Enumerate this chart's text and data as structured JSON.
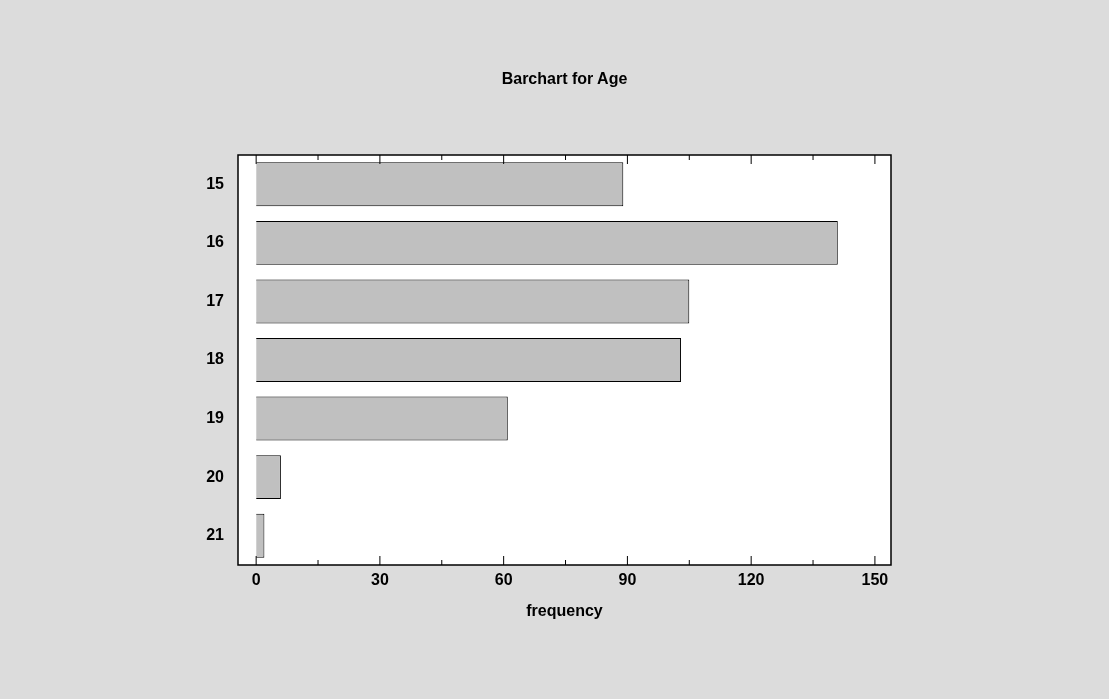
{
  "chart_data": {
    "type": "bar",
    "orientation": "horizontal",
    "title": "Barchart for Age",
    "xlabel": "frequency",
    "categories": [
      "15",
      "16",
      "17",
      "18",
      "19",
      "20",
      "21"
    ],
    "values": [
      89,
      141,
      105,
      103,
      61,
      6,
      2
    ],
    "color": "#c0c0c0",
    "xlim": [
      -4.4,
      153.9
    ],
    "xticks": [
      0,
      {
        "value": 15,
        "label": null
      },
      30,
      {
        "value": 45,
        "label": null
      },
      60,
      {
        "value": 75,
        "label": null
      },
      90,
      {
        "value": 105,
        "label": null
      },
      120,
      {
        "value": 135,
        "label": null
      },
      150
    ],
    "grid": false,
    "legend": false
  }
}
